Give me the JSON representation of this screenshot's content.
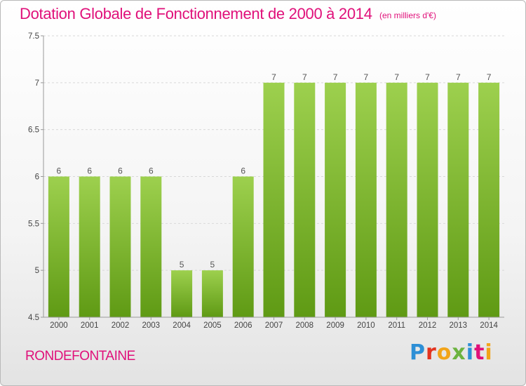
{
  "header": {
    "title": "Dotation Globale de Fonctionnement de 2000 à 2014",
    "subtitle": "(en milliers d'€)"
  },
  "footer": {
    "commune": "RONDEFONTAINE",
    "logo": "Proxiti"
  },
  "colors": {
    "title": "#e0107a",
    "bar_top": "#9dd04e",
    "bar_bottom": "#5f9a14"
  },
  "chart_data": {
    "type": "bar",
    "title": "Dotation Globale de Fonctionnement de 2000 à 2014",
    "xlabel": "",
    "ylabel": "",
    "ylim": [
      4.5,
      7.5
    ],
    "yticks": [
      "4.5",
      "5",
      "5.5",
      "6",
      "6.5",
      "7",
      "7.5"
    ],
    "categories": [
      "2000",
      "2001",
      "2002",
      "2003",
      "2004",
      "2005",
      "2006",
      "2007",
      "2008",
      "2009",
      "2010",
      "2011",
      "2012",
      "2013",
      "2014"
    ],
    "values": [
      6,
      6,
      6,
      6,
      5,
      5,
      6,
      7,
      7,
      7,
      7,
      7,
      7,
      7,
      7
    ],
    "data_labels": [
      "6",
      "6",
      "6",
      "6",
      "5",
      "5",
      "6",
      "7",
      "7",
      "7",
      "7",
      "7",
      "7",
      "7",
      "7"
    ],
    "grid": true,
    "legend": "none"
  }
}
